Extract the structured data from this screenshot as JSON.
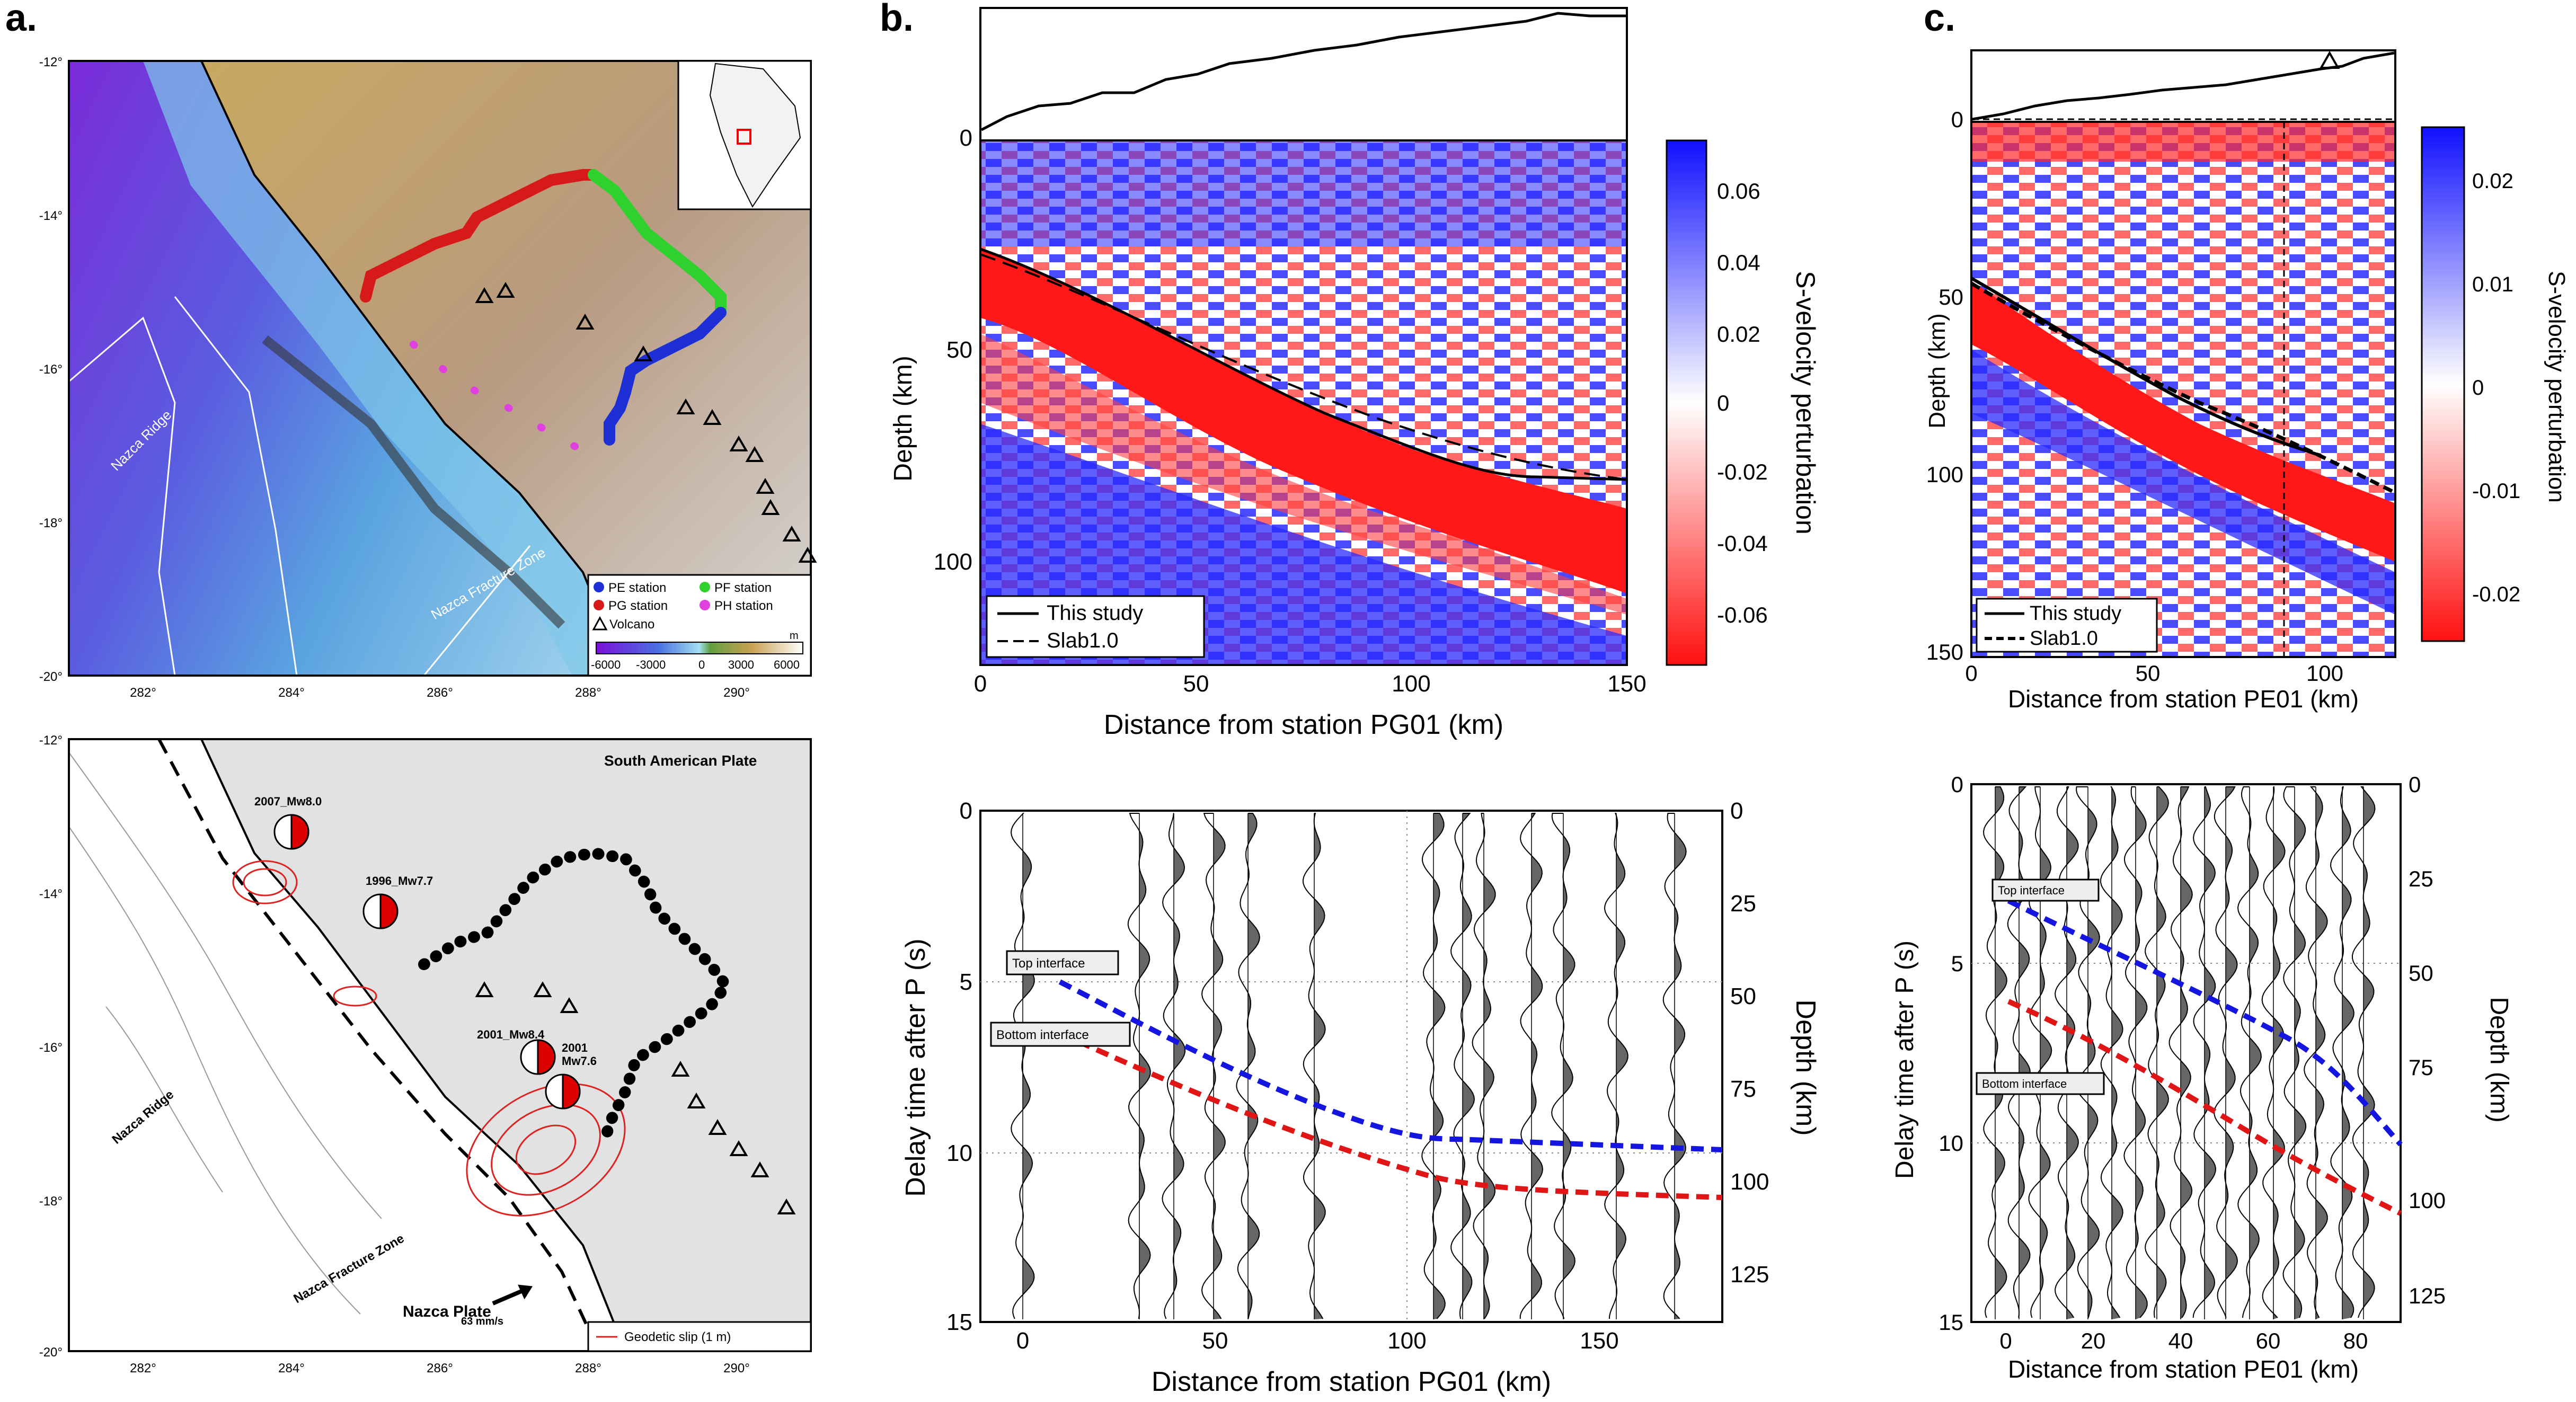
{
  "panels": {
    "a": {
      "letter": "a.",
      "top_map": {
        "lat_ticks": [
          "-12°",
          "-14°",
          "-16°",
          "-18°",
          "-20°"
        ],
        "lon_ticks": [
          "282°",
          "284°",
          "286°",
          "288°",
          "290°"
        ],
        "labels": {
          "nazca_ridge": "Nazca Ridge",
          "nazca_fz": "Nazca Fracture Zone"
        },
        "legend": {
          "items": [
            {
              "label": "PE station",
              "color": "#1f2fd6"
            },
            {
              "label": "PF station",
              "color": "#2ed12e"
            },
            {
              "label": "PG station",
              "color": "#d61a1a"
            },
            {
              "label": "PH station",
              "color": "#e040e0"
            },
            {
              "label": "Volcano",
              "color": "#000000"
            }
          ],
          "colorbar_ticks": [
            "-6000",
            "-3000",
            "0",
            "3000",
            "6000"
          ],
          "colorbar_unit": "m"
        }
      },
      "bottom_map": {
        "lat_ticks": [
          "-12°",
          "-14°",
          "-16°",
          "-18°",
          "-20°"
        ],
        "lon_ticks": [
          "282°",
          "284°",
          "286°",
          "288°",
          "290°"
        ],
        "plate_labels": {
          "sa": "South American Plate",
          "nazca": "Nazca Plate"
        },
        "labels": {
          "nazca_ridge": "Nazca Ridge",
          "nazca_fz": "Nazca Fracture Zone",
          "velocity": "63 mm/s"
        },
        "events": [
          "2007_Mw8.0",
          "1996_Mw7.7",
          "2001_Mw8.4",
          "2001",
          "Mw7.6"
        ],
        "legend": "Geodetic slip (1 m)"
      }
    },
    "b": {
      "letter": "b.",
      "top": {
        "ylabel": "Depth (km)",
        "xlabel": "Distance from station PG01 (km)",
        "yticks": [
          "0",
          "50",
          "100"
        ],
        "xticks": [
          "0",
          "50",
          "100",
          "150"
        ],
        "legend": [
          "This study",
          "Slab1.0"
        ],
        "colorbar_label": "S-velocity perturbation",
        "colorbar_ticks": [
          "0.06",
          "0.04",
          "0.02",
          "0",
          "-0.02",
          "-0.04",
          "-0.06"
        ]
      },
      "bottom": {
        "ylabel": "Delay time after P (s)",
        "ylabel2": "Depth (km)",
        "xlabel": "Distance from station PG01 (km)",
        "yticks": [
          "0",
          "5",
          "10",
          "15"
        ],
        "depth_ticks": [
          "0",
          "25",
          "50",
          "75",
          "100",
          "125"
        ],
        "xticks": [
          "0",
          "50",
          "100",
          "150"
        ],
        "top_label": "Top interface",
        "bottom_label": "Bottom interface"
      }
    },
    "c": {
      "letter": "c.",
      "top": {
        "ylabel": "Depth (km)",
        "xlabel": "Distance from station PE01 (km)",
        "yticks": [
          "0",
          "50",
          "100",
          "150"
        ],
        "xticks": [
          "0",
          "50",
          "100"
        ],
        "legend": [
          "This study",
          "Slab1.0"
        ],
        "colorbar_label": "S-velocity perturbation",
        "colorbar_ticks": [
          "0.02",
          "0.01",
          "0",
          "-0.01",
          "-0.02"
        ]
      },
      "bottom": {
        "ylabel": "Delay time after P (s)",
        "ylabel2": "Depth (km)",
        "xlabel": "Distance from station PE01 (km)",
        "yticks": [
          "0",
          "5",
          "10",
          "15"
        ],
        "depth_ticks": [
          "0",
          "25",
          "50",
          "75",
          "100",
          "125"
        ],
        "xticks": [
          "0",
          "20",
          "40",
          "60",
          "80"
        ],
        "top_label": "Top interface",
        "bottom_label": "Bottom interface"
      }
    }
  }
}
